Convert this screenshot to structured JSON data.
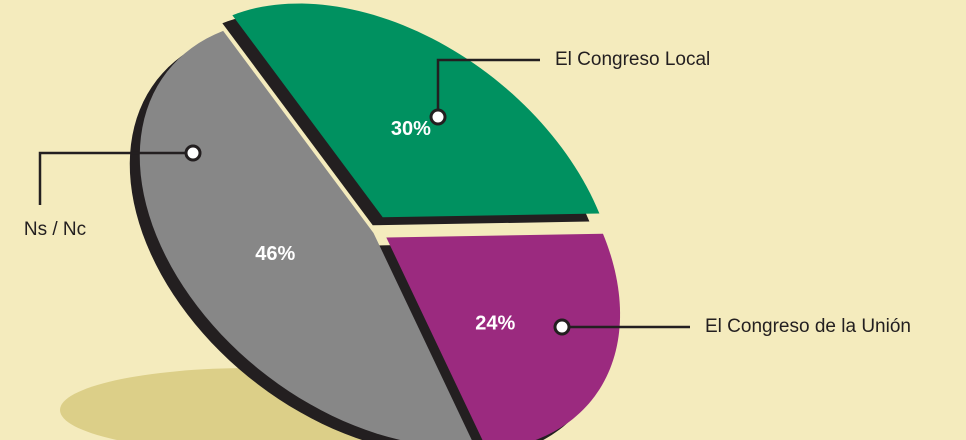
{
  "chart_data": {
    "type": "pie",
    "categories": [
      "El Congreso Local",
      "El Congreso de la Unión",
      "Ns / Nc"
    ],
    "values": [
      30,
      24,
      46
    ],
    "value_labels": [
      "30%",
      "24%",
      "46%"
    ],
    "colors": [
      "#009160",
      "#9b2a7f",
      "#878787"
    ]
  }
}
